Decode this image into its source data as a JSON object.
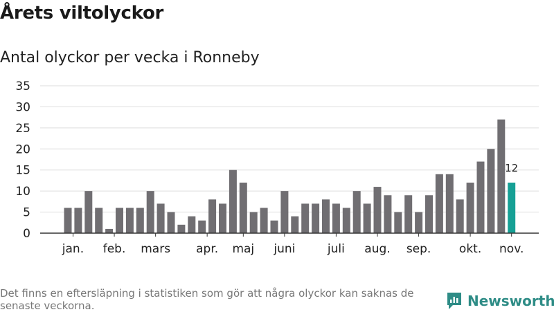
{
  "title": "Årets viltolyckor",
  "subtitle": "Antal olyckor per vecka i Ronneby",
  "footnote": "Det finns en eftersläpning i statistiken som gör att några olyckor kan saknas de senaste veckorna.",
  "brand": {
    "name": "Newsworthy",
    "icon": "newsworthy-logo-icon",
    "color": "#2e8c86"
  },
  "colors": {
    "bar": "#706e72",
    "highlight": "#16a095",
    "grid": "#dddddd",
    "axis": "#333333"
  },
  "chart_data": {
    "type": "bar",
    "title": "Antal olyckor per vecka i Ronneby",
    "xlabel": "",
    "ylabel": "",
    "ylim": [
      0,
      35
    ],
    "yticks": [
      0,
      5,
      10,
      15,
      20,
      25,
      30,
      35
    ],
    "grid": true,
    "weeks": [
      1,
      2,
      3,
      4,
      5,
      6,
      7,
      8,
      9,
      10,
      11,
      12,
      13,
      14,
      15,
      16,
      17,
      18,
      19,
      20,
      21,
      22,
      23,
      24,
      25,
      26,
      27,
      28,
      29,
      30,
      31,
      32,
      33,
      34,
      35,
      36,
      37,
      38,
      39,
      40,
      41,
      42,
      43,
      44
    ],
    "values": [
      6,
      6,
      10,
      6,
      1,
      6,
      6,
      6,
      10,
      7,
      5,
      2,
      4,
      3,
      8,
      7,
      15,
      12,
      5,
      6,
      3,
      10,
      4,
      7,
      7,
      8,
      7,
      6,
      10,
      7,
      11,
      9,
      5,
      9,
      5,
      9,
      14,
      14,
      8,
      12,
      17,
      20,
      27,
      12
    ],
    "highlight_index": 43,
    "highlight_label": "12",
    "month_labels": [
      {
        "label": "jan.",
        "week": 1.5
      },
      {
        "label": "feb.",
        "week": 5.5
      },
      {
        "label": "mars",
        "week": 9.5
      },
      {
        "label": "apr.",
        "week": 14.5
      },
      {
        "label": "maj",
        "week": 18
      },
      {
        "label": "juni",
        "week": 22
      },
      {
        "label": "juli",
        "week": 27
      },
      {
        "label": "aug.",
        "week": 31
      },
      {
        "label": "sep.",
        "week": 35
      },
      {
        "label": "okt.",
        "week": 40
      },
      {
        "label": "nov.",
        "week": 44
      }
    ]
  }
}
